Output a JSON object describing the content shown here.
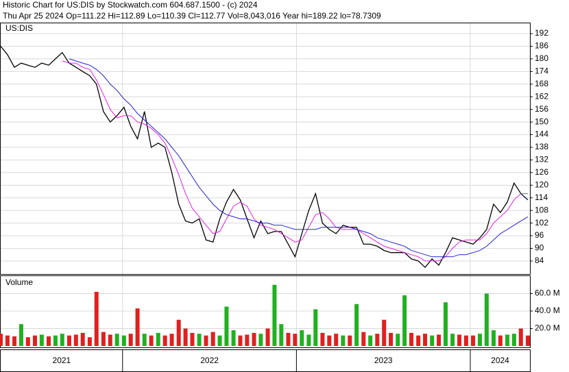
{
  "chart_data": [
    {
      "type": "line",
      "title": "Historic Chart for US:DIS by Stockwatch.com 604.687.1500 - (c) 2024",
      "subtitle": "Thu Apr 25 2024  Op=111.22  Hi=112.89  Lo=110.39  Cl=112.77  Vol=8,043,016  Year hi=189.22  lo=78.7309",
      "label": "US:DIS",
      "x": [
        2021.299,
        2021.338,
        2021.378,
        2021.417,
        2021.456,
        2021.496,
        2021.535,
        2021.575,
        2021.614,
        2021.653,
        2021.693,
        2021.732,
        2021.771,
        2021.811,
        2021.85,
        2021.89,
        2021.929,
        2021.968,
        2022.008,
        2022.047,
        2022.086,
        2022.126,
        2022.165,
        2022.205,
        2022.244,
        2022.283,
        2022.323,
        2022.362,
        2022.401,
        2022.441,
        2022.48,
        2022.52,
        2022.559,
        2022.598,
        2022.638,
        2022.677,
        2022.716,
        2022.756,
        2022.795,
        2022.835,
        2022.874,
        2022.913,
        2022.953,
        2022.992,
        2023.031,
        2023.071,
        2023.11,
        2023.15,
        2023.189,
        2023.228,
        2023.268,
        2023.307,
        2023.346,
        2023.386,
        2023.425,
        2023.465,
        2023.504,
        2023.543,
        2023.583,
        2023.622,
        2023.661,
        2023.701,
        2023.74,
        2023.78,
        2023.819,
        2023.858,
        2023.898,
        2023.937,
        2023.976,
        2024.016,
        2024.055,
        2024.094,
        2024.134,
        2024.173,
        2024.213,
        2024.252,
        2024.291,
        2024.331
      ],
      "series": [
        {
          "color": "#000000",
          "values": [
            186,
            182,
            176,
            178,
            177,
            176,
            178,
            177,
            180,
            183,
            178,
            176,
            174,
            172,
            168,
            155,
            150,
            153,
            157,
            148,
            142,
            155,
            138,
            140,
            138,
            126,
            111,
            103,
            102,
            104,
            94,
            93,
            104,
            112,
            118,
            113,
            104,
            95,
            103,
            97,
            98,
            98,
            92,
            86,
            97,
            108,
            116,
            102,
            99,
            97,
            101,
            100,
            100,
            92,
            92,
            91,
            89,
            88,
            88,
            88,
            85,
            84,
            81,
            85,
            82,
            88,
            95,
            94,
            93,
            92,
            95,
            99,
            111,
            107,
            112,
            121,
            116,
            113
          ]
        },
        {
          "color": "#e020e0",
          "values": [
            null,
            null,
            null,
            null,
            null,
            null,
            null,
            null,
            null,
            179,
            178,
            178,
            176,
            175,
            170,
            163,
            156,
            152,
            153,
            153,
            150,
            149,
            147,
            144,
            140,
            133,
            125,
            116,
            109,
            105,
            101,
            97,
            98,
            104,
            110,
            112,
            110,
            104,
            101,
            100,
            99,
            97,
            95,
            93,
            94,
            100,
            106,
            107,
            104,
            100,
            99,
            99,
            99,
            97,
            95,
            93,
            91,
            90,
            89,
            88,
            87,
            86,
            84,
            84,
            84,
            86,
            90,
            93,
            94,
            94,
            94,
            97,
            102,
            105,
            108,
            113,
            116,
            116
          ]
        },
        {
          "color": "#2020d0",
          "values": [
            null,
            null,
            null,
            null,
            null,
            null,
            null,
            null,
            null,
            null,
            180,
            179,
            178,
            177,
            175,
            172,
            168,
            165,
            161,
            158,
            154,
            151,
            148,
            145,
            142,
            138,
            134,
            129,
            124,
            119,
            115,
            111,
            108,
            106,
            105,
            104,
            104,
            103,
            102,
            102,
            101,
            101,
            100,
            99,
            99,
            99,
            99,
            100,
            100,
            100,
            100,
            100,
            99,
            98,
            97,
            95,
            94,
            93,
            92,
            91,
            89,
            88,
            87,
            86,
            86,
            86,
            86,
            87,
            87,
            88,
            89,
            91,
            94,
            97,
            99,
            101,
            103,
            105
          ]
        }
      ],
      "xlim": [
        2021.299,
        2024.343
      ],
      "xticks": [
        2022,
        2023,
        2024
      ],
      "ylim": [
        77.8,
        196.9
      ],
      "yticks": [
        84,
        90,
        96,
        102,
        108,
        114,
        120,
        126,
        132,
        138,
        144,
        150,
        156,
        162,
        168,
        174,
        180,
        186,
        192
      ],
      "grid": true
    },
    {
      "type": "bar",
      "label": "Volume",
      "up_color": "#20b020",
      "down_color": "#e02020",
      "values": [
        14000000,
        12000000,
        11000000,
        25000000,
        10000000,
        12000000,
        13000000,
        11000000,
        12000000,
        14000000,
        12000000,
        13000000,
        15000000,
        10000000,
        62000000,
        16000000,
        13000000,
        14000000,
        12000000,
        14000000,
        43000000,
        14000000,
        12000000,
        15000000,
        12000000,
        14000000,
        30000000,
        20000000,
        15000000,
        14000000,
        12000000,
        16000000,
        12000000,
        45000000,
        18000000,
        12000000,
        13000000,
        15000000,
        14000000,
        20000000,
        70000000,
        25000000,
        15000000,
        14000000,
        18000000,
        13000000,
        42000000,
        15000000,
        12000000,
        14000000,
        12000000,
        12000000,
        48000000,
        16000000,
        12000000,
        14000000,
        30000000,
        15000000,
        14000000,
        58000000,
        15000000,
        12000000,
        14000000,
        12000000,
        13000000,
        50000000,
        14000000,
        13000000,
        12000000,
        12000000,
        14000000,
        60000000,
        18000000,
        12000000,
        13000000,
        14000000,
        20000000,
        12000000
      ],
      "ylim": [
        0,
        80000000
      ],
      "yticks": [
        {
          "value": 20000000,
          "label": "20.0 M"
        },
        {
          "value": 40000000,
          "label": "40.0 M"
        },
        {
          "value": 60000000,
          "label": "60.0 M"
        }
      ],
      "year_labels": [
        "2021",
        "2022",
        "2023",
        "2024"
      ],
      "grid": true
    }
  ]
}
